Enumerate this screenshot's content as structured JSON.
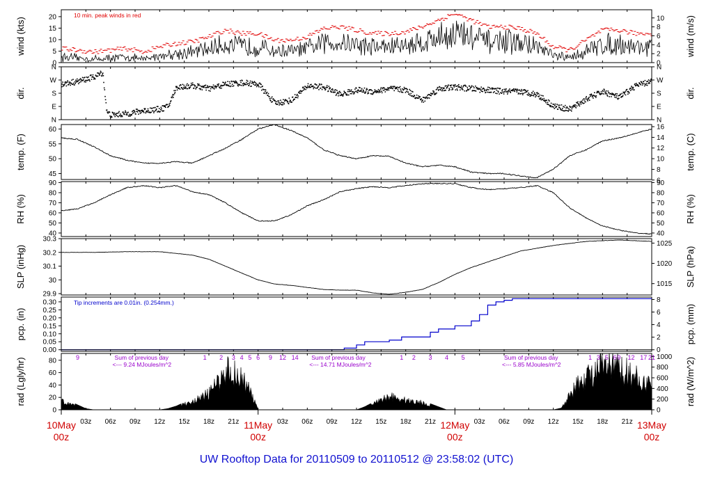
{
  "title": "UW Rooftop Data for 20110509  to  20110512 @ 23:58:02  (UTC)",
  "colors": {
    "axis": "#000000",
    "peak": "#e00000",
    "precip": "#0000cc",
    "annot": "#9900cc",
    "day": "#d00000",
    "title": "#1010d0"
  },
  "chart_data": [
    {
      "type": "line",
      "id": "wind",
      "ylabel": "wind (kts)",
      "ylabel_right": "wind (m/s)",
      "ylim": [
        0,
        23
      ],
      "yticks": [
        0,
        5,
        10,
        15,
        20
      ],
      "y2lim": [
        0,
        11.83
      ],
      "y2ticks": [
        0,
        2,
        4,
        6,
        8,
        10
      ],
      "annotation": "10 min. peak winds in red",
      "x_hours": [
        0,
        2,
        4,
        6,
        8,
        10,
        12,
        14,
        16,
        18,
        20,
        22,
        24,
        26,
        28,
        30,
        32,
        34,
        36,
        38,
        40,
        42,
        44,
        46,
        48,
        50,
        52,
        54,
        56,
        58,
        60,
        62,
        64,
        66,
        68,
        70,
        72
      ],
      "values": [
        2.5,
        2,
        1.5,
        2,
        2.5,
        1.5,
        3,
        4,
        4.5,
        6,
        8,
        7,
        7,
        5,
        5,
        6,
        8.5,
        9,
        8,
        7,
        7,
        7.5,
        9,
        11,
        13,
        11,
        9,
        9,
        8.5,
        7,
        3,
        2,
        5,
        8,
        8,
        7,
        7
      ]
    },
    {
      "type": "scatter",
      "id": "dir",
      "ylabel": "dir.",
      "ylabel_right": "dir.",
      "ylim": [
        0,
        360
      ],
      "ytick_values": [
        0,
        90,
        180,
        270,
        360
      ],
      "ytick_labels": [
        "N",
        "E",
        "S",
        "W",
        "N"
      ],
      "x_hours": [
        0,
        2,
        4,
        5,
        5.5,
        6,
        8,
        10,
        12,
        13,
        14,
        16,
        18,
        20,
        22,
        24,
        26,
        28,
        30,
        32,
        34,
        36,
        38,
        40,
        42,
        44,
        46,
        48,
        50,
        52,
        54,
        56,
        58,
        60,
        62,
        64,
        66,
        68,
        70,
        72
      ],
      "values": [
        240,
        260,
        290,
        320,
        50,
        30,
        40,
        60,
        70,
        90,
        220,
        230,
        210,
        240,
        250,
        240,
        110,
        130,
        230,
        220,
        170,
        200,
        190,
        210,
        200,
        130,
        210,
        220,
        210,
        200,
        190,
        190,
        170,
        90,
        70,
        140,
        190,
        150,
        230,
        260
      ]
    },
    {
      "type": "line",
      "id": "temp",
      "ylabel": "temp. (F)",
      "ylabel_right": "temp. (C)",
      "ylim": [
        43,
        61.5
      ],
      "yticks": [
        45,
        50,
        55,
        60
      ],
      "y2lim": [
        6.1,
        16.4
      ],
      "y2ticks": [
        6,
        8,
        10,
        12,
        14,
        16
      ],
      "x_hours": [
        0,
        2,
        4,
        6,
        8,
        10,
        12,
        14,
        16,
        18,
        20,
        22,
        24,
        26,
        28,
        30,
        32,
        34,
        36,
        38,
        40,
        42,
        44,
        46,
        48,
        50,
        52,
        54,
        56,
        58,
        60,
        62,
        64,
        66,
        68,
        70,
        72
      ],
      "values": [
        57,
        56.5,
        54,
        51,
        49.5,
        48.5,
        48.5,
        49,
        48.5,
        51,
        53.5,
        56.5,
        60,
        61.5,
        59.5,
        57,
        53,
        51,
        50,
        51,
        50.8,
        48.5,
        47.3,
        47.8,
        47.3,
        45.5,
        45,
        45,
        44.2,
        43.6,
        46.5,
        51,
        53,
        56,
        57,
        58.5,
        60
      ]
    },
    {
      "type": "line",
      "id": "rh",
      "ylabel": "RH (%)",
      "ylabel_right": "RH (%)",
      "ylim": [
        36.5,
        91
      ],
      "yticks": [
        40,
        50,
        60,
        70,
        80,
        90
      ],
      "x_hours": [
        0,
        2,
        4,
        6,
        8,
        10,
        12,
        14,
        16,
        18,
        20,
        22,
        24,
        26,
        28,
        30,
        32,
        34,
        36,
        38,
        40,
        42,
        44,
        46,
        48,
        50,
        52,
        54,
        56,
        58,
        60,
        62,
        64,
        66,
        68,
        70,
        72
      ],
      "values": [
        62,
        64,
        70,
        78,
        85,
        87,
        85,
        87,
        81,
        78,
        70,
        60,
        52,
        52,
        58,
        67,
        73,
        81,
        84,
        86,
        85,
        87,
        89,
        89,
        89,
        85,
        83,
        84,
        85,
        87,
        80,
        65,
        55,
        47,
        43,
        40,
        39
      ]
    },
    {
      "type": "line",
      "id": "slp",
      "ylabel": "SLP (inHg)",
      "ylabel_right": "SLP (hPa)",
      "ylim": [
        29.89,
        30.3
      ],
      "yticks": [
        29.9,
        30.0,
        30.1,
        30.2,
        30.3
      ],
      "y2lim": [
        1012.2,
        1026.1
      ],
      "y2ticks": [
        1015,
        1020,
        1025
      ],
      "x_hours": [
        0,
        4,
        8,
        12,
        16,
        18,
        20,
        22,
        24,
        26,
        28,
        30,
        32,
        34,
        36,
        38,
        40,
        42,
        44,
        46,
        48,
        50,
        52,
        54,
        56,
        58,
        60,
        62,
        64,
        66,
        68,
        70,
        72
      ],
      "values": [
        30.2,
        30.2,
        30.205,
        30.205,
        30.18,
        30.15,
        30.1,
        30.05,
        30.0,
        29.97,
        29.96,
        29.945,
        29.93,
        29.925,
        29.925,
        29.905,
        29.895,
        29.91,
        29.93,
        29.98,
        30.04,
        30.09,
        30.13,
        30.17,
        30.21,
        30.23,
        30.25,
        30.265,
        30.28,
        30.285,
        30.29,
        30.285,
        30.28
      ]
    },
    {
      "type": "line",
      "id": "pcp",
      "step": true,
      "ylabel": "pcp. (in)",
      "ylabel_right": "pcp. (mm)",
      "ylim": [
        -0.01,
        0.33
      ],
      "yticks": [
        0.0,
        0.05,
        0.1,
        0.15,
        0.2,
        0.25,
        0.3
      ],
      "ytick_labels": [
        "0.00",
        "0.05",
        "0.10",
        "0.15",
        "0.20",
        "0.25",
        "0.30"
      ],
      "y2lim": [
        -0.25,
        8.38
      ],
      "y2ticks": [
        0,
        2,
        4,
        6,
        8
      ],
      "annotation": "Tip increments are 0.01in. (0.254mm.)",
      "x_hours": [
        0,
        33,
        34.5,
        36,
        37,
        40,
        41.5,
        45,
        46,
        48,
        50,
        51,
        52,
        53,
        54,
        55,
        72
      ],
      "values": [
        0,
        0,
        0.01,
        0.03,
        0.05,
        0.06,
        0.08,
        0.11,
        0.13,
        0.15,
        0.18,
        0.22,
        0.28,
        0.3,
        0.31,
        0.32,
        0.32
      ]
    },
    {
      "type": "area",
      "id": "rad",
      "ylabel": "rad (Lgly/hr)",
      "ylabel_right": "rad (W/m^2)",
      "ylim": [
        0,
        91
      ],
      "yticks": [
        0,
        20,
        40,
        60,
        80
      ],
      "y2lim": [
        0,
        1057
      ],
      "y2ticks": [
        0,
        200,
        400,
        600,
        800,
        1000
      ],
      "x_hours": [
        0,
        1,
        2,
        3,
        4,
        5,
        6,
        7,
        8,
        9,
        10,
        11,
        12,
        13,
        14,
        15,
        16,
        17,
        18,
        19,
        20,
        21,
        22,
        23,
        24,
        25,
        26,
        27,
        28,
        29,
        30,
        31,
        32,
        33,
        34,
        35,
        36,
        37,
        38,
        39,
        40,
        41,
        42,
        43,
        44,
        45,
        46,
        47,
        48,
        49,
        50,
        51,
        52,
        53,
        54,
        55,
        56,
        57,
        58,
        59,
        60,
        61,
        62,
        63,
        64,
        65,
        66,
        67,
        68,
        69,
        70,
        71,
        72
      ],
      "values": [
        18,
        14,
        8,
        2,
        0,
        0,
        0,
        0,
        0,
        0,
        0,
        0,
        0,
        2,
        6,
        12,
        18,
        25,
        35,
        55,
        85,
        80,
        70,
        40,
        0,
        0,
        0,
        0,
        0,
        0,
        0,
        0,
        0,
        0,
        0,
        0,
        0,
        5,
        12,
        20,
        30,
        25,
        20,
        18,
        15,
        10,
        5,
        0,
        0,
        0,
        0,
        0,
        0,
        0,
        0,
        0,
        0,
        0,
        0,
        0,
        0,
        3,
        30,
        55,
        70,
        80,
        90,
        92,
        88,
        80,
        70,
        60,
        50
      ],
      "hour_labels": [
        {
          "x": 2,
          "text": "9"
        },
        {
          "x": 17.5,
          "text": "1"
        },
        {
          "x": 19.5,
          "text": "2"
        },
        {
          "x": 21,
          "text": "3"
        },
        {
          "x": 22,
          "text": "4"
        },
        {
          "x": 23,
          "text": "5"
        },
        {
          "x": 24,
          "text": "6"
        },
        {
          "x": 25.5,
          "text": "9"
        },
        {
          "x": 27,
          "text": "12"
        },
        {
          "x": 28.5,
          "text": "14"
        },
        {
          "x": 41.5,
          "text": "1"
        },
        {
          "x": 43,
          "text": "2"
        },
        {
          "x": 45,
          "text": "3"
        },
        {
          "x": 47,
          "text": "4"
        },
        {
          "x": 49,
          "text": "5"
        },
        {
          "x": 64.5,
          "text": "1"
        },
        {
          "x": 65.5,
          "text": "3"
        },
        {
          "x": 66.5,
          "text": "5"
        },
        {
          "x": 67.5,
          "text": "6"
        },
        {
          "x": 68,
          "text": "9"
        },
        {
          "x": 69.5,
          "text": "12"
        },
        {
          "x": 71,
          "text": "17"
        },
        {
          "x": 72,
          "text": "21"
        }
      ],
      "sums": [
        {
          "x": 6.5,
          "line1": "Sum of previous day",
          "line2": "<--- 9.24 MJoules/m^2"
        },
        {
          "x": 30.5,
          "line1": "Sum of previous day",
          "line2": "<--- 14.71 MJoules/m^2"
        },
        {
          "x": 54,
          "line1": "Sum of previous day",
          "line2": "<--- 5.85 MJoules/m^2"
        }
      ]
    }
  ],
  "x_axis": {
    "time_labels": [
      {
        "x": 3,
        "text": "03z"
      },
      {
        "x": 6,
        "text": "06z"
      },
      {
        "x": 9,
        "text": "09z"
      },
      {
        "x": 12,
        "text": "12z"
      },
      {
        "x": 15,
        "text": "15z"
      },
      {
        "x": 18,
        "text": "18z"
      },
      {
        "x": 21,
        "text": "21z"
      },
      {
        "x": 27,
        "text": "03z"
      },
      {
        "x": 30,
        "text": "06z"
      },
      {
        "x": 33,
        "text": "09z"
      },
      {
        "x": 36,
        "text": "12z"
      },
      {
        "x": 39,
        "text": "15z"
      },
      {
        "x": 42,
        "text": "18z"
      },
      {
        "x": 45,
        "text": "21z"
      },
      {
        "x": 51,
        "text": "03z"
      },
      {
        "x": 54,
        "text": "06z"
      },
      {
        "x": 57,
        "text": "09z"
      },
      {
        "x": 60,
        "text": "12z"
      },
      {
        "x": 63,
        "text": "15z"
      },
      {
        "x": 66,
        "text": "18z"
      },
      {
        "x": 69,
        "text": "21z"
      }
    ],
    "day_labels": [
      {
        "x": 0,
        "date": "10May",
        "hour": "00z"
      },
      {
        "x": 24,
        "date": "11May",
        "hour": "00z"
      },
      {
        "x": 48,
        "date": "12May",
        "hour": "00z"
      },
      {
        "x": 72,
        "date": "13May",
        "hour": "00z"
      }
    ]
  }
}
